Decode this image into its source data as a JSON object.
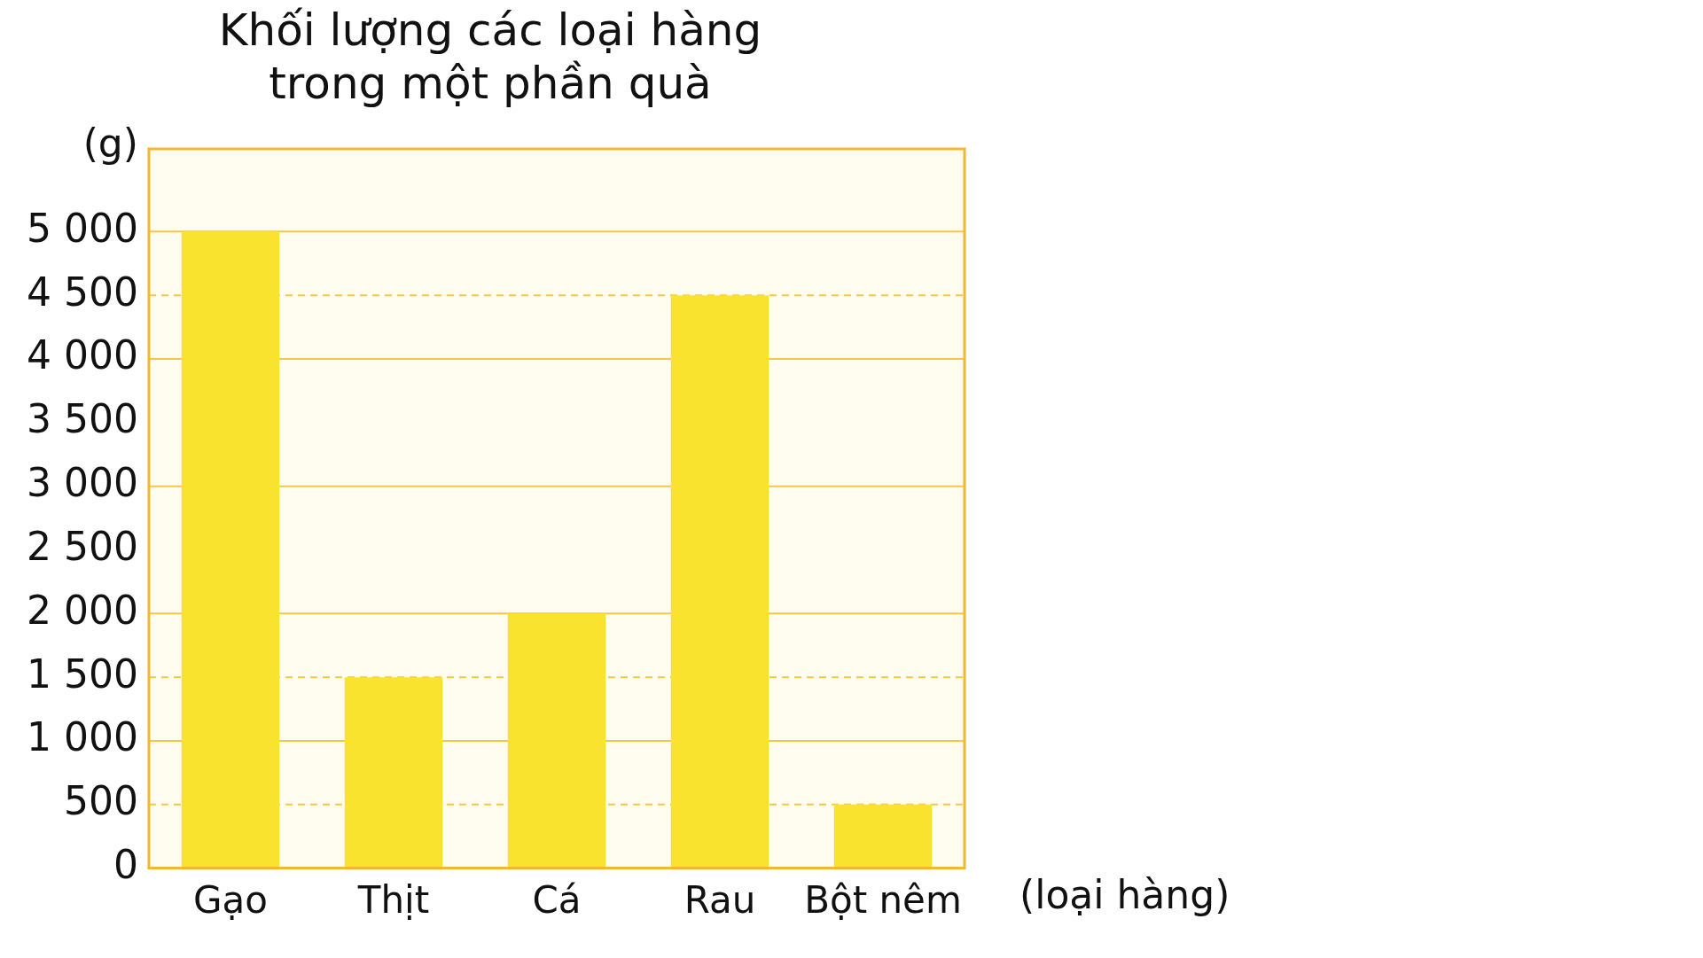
{
  "chart_data": {
    "type": "bar",
    "title": [
      "Khối lượng các loại hàng",
      "trong một phần quà"
    ],
    "ylabel": "(g)",
    "xlabel": "(loại hàng)",
    "categories": [
      "Gạo",
      "Thịt",
      "Cá",
      "Rau",
      "Bột nêm"
    ],
    "values": [
      5000,
      1500,
      2000,
      4500,
      500
    ],
    "color": "#f9e32e",
    "ylim": [
      0,
      5650
    ],
    "yticks": [
      0,
      500,
      {
        "value": 1000,
        "label": "1 000"
      },
      {
        "value": 1500,
        "label": "1 500"
      },
      {
        "value": 2000,
        "label": "2 000"
      },
      {
        "value": 2500,
        "label": "2 500"
      },
      {
        "value": 3000,
        "label": "3 000"
      },
      {
        "value": 3500,
        "label": "3 500"
      },
      {
        "value": 4000,
        "label": "4 000"
      },
      {
        "value": 4500,
        "label": "4 500"
      },
      {
        "value": 5000,
        "label": "5 000"
      }
    ],
    "grid": false,
    "ref_lines": [
      {
        "axis": "y",
        "value": 1000,
        "color": "#f4c842",
        "line_style": "solid"
      },
      {
        "axis": "y",
        "value": 2000,
        "color": "#f4c842",
        "line_style": "solid"
      },
      {
        "axis": "y",
        "value": 3000,
        "color": "#f4c842",
        "line_style": "solid"
      },
      {
        "axis": "y",
        "value": 4000,
        "color": "#f4c842",
        "line_style": "solid"
      },
      {
        "axis": "y",
        "value": 5000,
        "color": "#f4c842",
        "line_style": "solid"
      },
      {
        "axis": "y",
        "value": 500,
        "color": "#f4c842",
        "line_style": "dashed"
      },
      {
        "axis": "y",
        "value": 1500,
        "color": "#f4c842",
        "line_style": "dashed"
      },
      {
        "axis": "y",
        "value": 4500,
        "color": "#f4c842",
        "line_style": "dashed"
      }
    ]
  }
}
